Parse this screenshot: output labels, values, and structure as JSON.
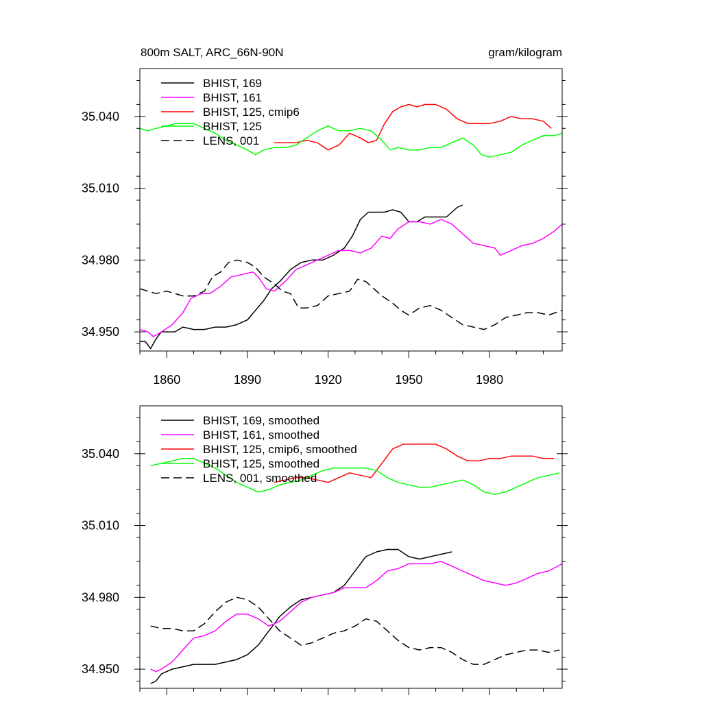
{
  "colors": {
    "black": "#000000",
    "magenta": "#ff00ff",
    "red": "#ff0000",
    "green": "#00ff00"
  },
  "chart_data": [
    {
      "type": "line",
      "title": "800m SALT, ARC_66N-90N",
      "units": "gram/kilogram",
      "xlim": [
        1850,
        2007
      ],
      "ylim": [
        34.942,
        35.06
      ],
      "xticks": [
        "1860",
        "1890",
        "1920",
        "1950",
        "1980"
      ],
      "yticks": [
        "34.950",
        "34.980",
        "35.010",
        "35.040"
      ],
      "legend_position": "top-left",
      "series": [
        {
          "name": "BHIST, 169",
          "color": "#000000",
          "dash": "solid",
          "x": [
            1850,
            1852,
            1854,
            1856,
            1858,
            1860,
            1863,
            1866,
            1870,
            1874,
            1878,
            1882,
            1886,
            1890,
            1893,
            1896,
            1899,
            1902,
            1906,
            1910,
            1914,
            1918,
            1922,
            1926,
            1929,
            1932,
            1935,
            1938,
            1941,
            1944,
            1947,
            1950,
            1953,
            1956,
            1960,
            1964,
            1968,
            1970
          ],
          "y": [
            34.946,
            34.946,
            34.943,
            34.947,
            34.95,
            34.95,
            34.95,
            34.952,
            34.951,
            34.951,
            34.952,
            34.952,
            34.953,
            34.955,
            34.959,
            34.963,
            34.968,
            34.971,
            34.976,
            34.979,
            34.98,
            34.98,
            34.982,
            34.985,
            34.99,
            34.997,
            35.0,
            35.0,
            35.0,
            35.001,
            35.0,
            34.996,
            34.996,
            34.998,
            34.998,
            34.998,
            35.002,
            35.003
          ]
        },
        {
          "name": "BHIST, 161",
          "color": "#ff00ff",
          "dash": "solid",
          "x": [
            1850,
            1853,
            1855,
            1858,
            1862,
            1866,
            1869,
            1873,
            1876,
            1880,
            1884,
            1888,
            1892,
            1894,
            1897,
            1900,
            1904,
            1908,
            1912,
            1916,
            1920,
            1924,
            1928,
            1932,
            1936,
            1940,
            1943,
            1946,
            1950,
            1954,
            1958,
            1962,
            1966,
            1970,
            1974,
            1978,
            1982,
            1984,
            1988,
            1992,
            1996,
            2000,
            2004,
            2007
          ],
          "y": [
            34.951,
            34.95,
            34.948,
            34.95,
            34.953,
            34.958,
            34.964,
            34.966,
            34.966,
            34.969,
            34.973,
            34.974,
            34.975,
            34.973,
            34.968,
            34.967,
            34.971,
            34.976,
            34.978,
            34.98,
            34.982,
            34.984,
            34.984,
            34.983,
            34.985,
            34.99,
            34.989,
            34.993,
            34.996,
            34.996,
            34.995,
            34.997,
            34.995,
            34.991,
            34.987,
            34.986,
            34.985,
            34.982,
            34.984,
            34.986,
            34.987,
            34.989,
            34.992,
            34.995
          ]
        },
        {
          "name": "BHIST, 125, cmip6",
          "color": "#ff0000",
          "dash": "solid",
          "x": [
            1900,
            1904,
            1908,
            1912,
            1916,
            1920,
            1924,
            1928,
            1932,
            1935,
            1938,
            1941,
            1944,
            1947,
            1950,
            1953,
            1956,
            1960,
            1964,
            1968,
            1972,
            1976,
            1980,
            1984,
            1988,
            1992,
            1996,
            2000,
            2003
          ],
          "y": [
            35.029,
            35.029,
            35.029,
            35.03,
            35.029,
            35.026,
            35.028,
            35.033,
            35.031,
            35.029,
            35.03,
            35.037,
            35.042,
            35.044,
            35.045,
            35.044,
            35.045,
            35.045,
            35.043,
            35.039,
            35.037,
            35.037,
            35.037,
            35.038,
            35.04,
            35.039,
            35.039,
            35.038,
            35.035
          ]
        },
        {
          "name": "BHIST, 125",
          "color": "#00ff00",
          "dash": "solid",
          "x": [
            1850,
            1853,
            1856,
            1860,
            1863,
            1866,
            1870,
            1874,
            1878,
            1882,
            1886,
            1890,
            1893,
            1896,
            1900,
            1904,
            1908,
            1912,
            1916,
            1920,
            1924,
            1928,
            1932,
            1936,
            1940,
            1943,
            1946,
            1950,
            1954,
            1958,
            1962,
            1966,
            1970,
            1974,
            1977,
            1980,
            1984,
            1988,
            1992,
            1996,
            2000,
            2004,
            2007
          ],
          "y": [
            35.035,
            35.034,
            35.035,
            35.036,
            35.037,
            35.037,
            35.037,
            35.035,
            35.033,
            35.03,
            35.028,
            35.026,
            35.024,
            35.026,
            35.027,
            35.027,
            35.028,
            35.031,
            35.034,
            35.036,
            35.034,
            35.034,
            35.035,
            35.034,
            35.03,
            35.026,
            35.027,
            35.026,
            35.026,
            35.027,
            35.027,
            35.029,
            35.031,
            35.028,
            35.024,
            35.023,
            35.024,
            35.025,
            35.028,
            35.03,
            35.032,
            35.032,
            35.033
          ]
        },
        {
          "name": "LENS, 001",
          "color": "#000000",
          "dash": "dashed",
          "x": [
            1850,
            1853,
            1856,
            1860,
            1863,
            1866,
            1870,
            1874,
            1877,
            1880,
            1883,
            1886,
            1890,
            1893,
            1896,
            1900,
            1903,
            1906,
            1909,
            1912,
            1916,
            1920,
            1924,
            1928,
            1931,
            1934,
            1937,
            1940,
            1944,
            1947,
            1950,
            1954,
            1958,
            1962,
            1966,
            1970,
            1974,
            1978,
            1982,
            1986,
            1990,
            1994,
            1998,
            2002,
            2007
          ],
          "y": [
            34.968,
            34.967,
            34.966,
            34.967,
            34.966,
            34.965,
            34.965,
            34.967,
            34.973,
            34.975,
            34.979,
            34.98,
            34.979,
            34.977,
            34.973,
            34.97,
            34.967,
            34.966,
            34.96,
            34.96,
            34.961,
            34.965,
            34.966,
            34.967,
            34.972,
            34.971,
            34.968,
            34.965,
            34.962,
            34.959,
            34.957,
            34.96,
            34.961,
            34.959,
            34.956,
            34.953,
            34.952,
            34.951,
            34.953,
            34.956,
            34.957,
            34.958,
            34.958,
            34.957,
            34.959
          ]
        }
      ]
    },
    {
      "type": "line",
      "title": "",
      "units": "",
      "xlim": [
        1850,
        2007
      ],
      "ylim": [
        34.942,
        35.06
      ],
      "xticks": [],
      "yticks": [
        "34.950",
        "34.980",
        "35.010",
        "35.040"
      ],
      "legend_position": "top-left",
      "series": [
        {
          "name": "BHIST, 169, smoothed",
          "color": "#000000",
          "dash": "solid",
          "x": [
            1854,
            1856,
            1858,
            1862,
            1866,
            1870,
            1874,
            1878,
            1882,
            1886,
            1890,
            1894,
            1898,
            1902,
            1906,
            1910,
            1914,
            1918,
            1922,
            1926,
            1930,
            1934,
            1938,
            1942,
            1946,
            1950,
            1954,
            1958,
            1962,
            1966
          ],
          "y": [
            34.944,
            34.945,
            34.948,
            34.95,
            34.951,
            34.952,
            34.952,
            34.952,
            34.953,
            34.954,
            34.956,
            34.96,
            34.966,
            34.972,
            34.976,
            34.979,
            34.98,
            34.981,
            34.982,
            34.985,
            34.991,
            34.997,
            34.999,
            35.0,
            35.0,
            34.997,
            34.996,
            34.997,
            34.998,
            34.999
          ]
        },
        {
          "name": "BHIST, 161, smoothed",
          "color": "#ff00ff",
          "dash": "solid",
          "x": [
            1854,
            1856,
            1858,
            1862,
            1866,
            1870,
            1874,
            1878,
            1882,
            1886,
            1890,
            1894,
            1898,
            1902,
            1906,
            1910,
            1914,
            1918,
            1922,
            1926,
            1930,
            1934,
            1938,
            1942,
            1946,
            1950,
            1954,
            1958,
            1962,
            1966,
            1970,
            1974,
            1978,
            1982,
            1986,
            1990,
            1994,
            1998,
            2002,
            2007
          ],
          "y": [
            34.95,
            34.949,
            34.95,
            34.953,
            34.958,
            34.963,
            34.964,
            34.966,
            34.97,
            34.973,
            34.973,
            34.971,
            34.968,
            34.97,
            34.974,
            34.978,
            34.98,
            34.981,
            34.982,
            34.984,
            34.984,
            34.984,
            34.987,
            34.991,
            34.992,
            34.994,
            34.994,
            34.994,
            34.995,
            34.993,
            34.991,
            34.989,
            34.987,
            34.986,
            34.985,
            34.986,
            34.988,
            34.99,
            34.991,
            34.994
          ]
        },
        {
          "name": "BHIST, 125, cmip6, smoothed",
          "color": "#ff0000",
          "dash": "solid",
          "x": [
            1900,
            1904,
            1908,
            1912,
            1916,
            1920,
            1924,
            1928,
            1932,
            1936,
            1940,
            1944,
            1948,
            1952,
            1956,
            1960,
            1964,
            1968,
            1972,
            1976,
            1980,
            1984,
            1988,
            1992,
            1996,
            2000,
            2004
          ],
          "y": [
            35.028,
            35.029,
            35.03,
            35.03,
            35.029,
            35.028,
            35.03,
            35.032,
            35.031,
            35.03,
            35.036,
            35.042,
            35.044,
            35.044,
            35.044,
            35.044,
            35.042,
            35.039,
            35.037,
            35.037,
            35.038,
            35.038,
            35.039,
            35.039,
            35.039,
            35.038,
            35.038
          ]
        },
        {
          "name": "BHIST, 125, smoothed",
          "color": "#00ff00",
          "dash": "solid",
          "x": [
            1854,
            1858,
            1862,
            1866,
            1870,
            1874,
            1878,
            1882,
            1886,
            1890,
            1894,
            1898,
            1902,
            1906,
            1910,
            1914,
            1918,
            1922,
            1926,
            1930,
            1934,
            1938,
            1942,
            1946,
            1950,
            1954,
            1958,
            1962,
            1966,
            1970,
            1974,
            1978,
            1982,
            1986,
            1990,
            1994,
            1998,
            2002,
            2006
          ],
          "y": [
            35.035,
            35.036,
            35.037,
            35.038,
            35.038,
            35.036,
            35.034,
            35.031,
            35.028,
            35.026,
            35.024,
            35.025,
            35.027,
            35.028,
            35.029,
            35.031,
            35.033,
            35.034,
            35.034,
            35.034,
            35.034,
            35.033,
            35.03,
            35.028,
            35.027,
            35.026,
            35.026,
            35.027,
            35.028,
            35.029,
            35.027,
            35.024,
            35.023,
            35.024,
            35.026,
            35.028,
            35.03,
            35.031,
            35.032
          ]
        },
        {
          "name": "LENS, 001, smoothed",
          "color": "#000000",
          "dash": "dashed",
          "x": [
            1854,
            1858,
            1862,
            1866,
            1870,
            1874,
            1878,
            1882,
            1886,
            1890,
            1894,
            1898,
            1902,
            1906,
            1910,
            1914,
            1918,
            1922,
            1926,
            1930,
            1934,
            1938,
            1942,
            1946,
            1950,
            1954,
            1958,
            1962,
            1966,
            1970,
            1974,
            1978,
            1982,
            1986,
            1990,
            1994,
            1998,
            2002,
            2006
          ],
          "y": [
            34.968,
            34.967,
            34.967,
            34.966,
            34.966,
            34.969,
            34.974,
            34.978,
            34.98,
            34.979,
            34.976,
            34.971,
            34.966,
            34.963,
            34.96,
            34.961,
            34.963,
            34.965,
            34.966,
            34.968,
            34.971,
            34.97,
            34.966,
            34.962,
            34.959,
            34.958,
            34.959,
            34.959,
            34.957,
            34.954,
            34.952,
            34.952,
            34.954,
            34.956,
            34.957,
            34.958,
            34.958,
            34.957,
            34.958
          ]
        }
      ]
    }
  ]
}
